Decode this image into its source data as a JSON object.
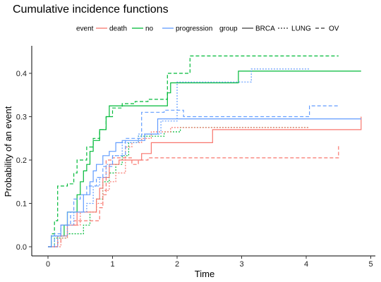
{
  "chart_data": {
    "type": "line",
    "step": true,
    "title": "Cumulative incidence functions",
    "xlabel": "Time",
    "ylabel": "Probability of an event",
    "xlim": [
      0,
      5
    ],
    "ylim": [
      0,
      0.45
    ],
    "xticks": [
      0,
      1,
      2,
      3,
      4,
      5
    ],
    "yticks": [
      "0.0",
      "0.1",
      "0.2",
      "0.3",
      "0.4"
    ],
    "grid": false,
    "legend": {
      "placement": "top",
      "event_title": "event",
      "event_items": [
        {
          "label": "death",
          "color": "#F8766D"
        },
        {
          "label": "no",
          "color": "#00BA38"
        },
        {
          "label": "progression",
          "color": "#619CFF"
        }
      ],
      "group_title": "group",
      "group_items": [
        {
          "label": "BRCA",
          "dash": "solid"
        },
        {
          "label": "LUNG",
          "dash": "dotted"
        },
        {
          "label": "OV",
          "dash": "dashed"
        }
      ]
    },
    "series": [
      {
        "event": "no",
        "group": "BRCA",
        "color": "#00BA38",
        "dash": "solid",
        "points": [
          [
            0,
            0
          ],
          [
            0.05,
            0.025
          ],
          [
            0.25,
            0.05
          ],
          [
            0.3,
            0.08
          ],
          [
            0.45,
            0.12
          ],
          [
            0.5,
            0.15
          ],
          [
            0.55,
            0.175
          ],
          [
            0.6,
            0.19
          ],
          [
            0.65,
            0.22
          ],
          [
            0.7,
            0.245
          ],
          [
            0.8,
            0.27
          ],
          [
            0.9,
            0.3
          ],
          [
            0.95,
            0.325
          ],
          [
            1.85,
            0.355
          ],
          [
            1.9,
            0.378
          ],
          [
            2.95,
            0.405
          ],
          [
            4.85,
            0.405
          ]
        ]
      },
      {
        "event": "no",
        "group": "LUNG",
        "color": "#00BA38",
        "dash": "dotted",
        "points": [
          [
            0,
            0
          ],
          [
            0.1,
            0.02
          ],
          [
            0.3,
            0.03
          ],
          [
            0.55,
            0.05
          ],
          [
            0.65,
            0.08
          ],
          [
            0.75,
            0.11
          ],
          [
            0.85,
            0.15
          ],
          [
            0.95,
            0.17
          ],
          [
            1.05,
            0.19
          ],
          [
            1.15,
            0.21
          ],
          [
            1.25,
            0.24
          ],
          [
            1.4,
            0.255
          ],
          [
            1.8,
            0.265
          ],
          [
            2.05,
            0.275
          ],
          [
            4.05,
            0.275
          ]
        ]
      },
      {
        "event": "no",
        "group": "OV",
        "color": "#00BA38",
        "dash": "dashed",
        "points": [
          [
            0,
            0
          ],
          [
            0.05,
            0.03
          ],
          [
            0.1,
            0.06
          ],
          [
            0.15,
            0.14
          ],
          [
            0.3,
            0.145
          ],
          [
            0.4,
            0.17
          ],
          [
            0.45,
            0.2
          ],
          [
            0.6,
            0.23
          ],
          [
            0.7,
            0.25
          ],
          [
            0.8,
            0.27
          ],
          [
            0.9,
            0.3
          ],
          [
            1.0,
            0.32
          ],
          [
            1.15,
            0.33
          ],
          [
            1.35,
            0.335
          ],
          [
            1.55,
            0.34
          ],
          [
            1.85,
            0.4
          ],
          [
            2.2,
            0.44
          ],
          [
            4.5,
            0.44
          ]
        ]
      },
      {
        "event": "death",
        "group": "BRCA",
        "color": "#F8766D",
        "dash": "solid",
        "points": [
          [
            0,
            0
          ],
          [
            0.15,
            0.025
          ],
          [
            0.3,
            0.05
          ],
          [
            0.45,
            0.08
          ],
          [
            0.75,
            0.11
          ],
          [
            0.8,
            0.135
          ],
          [
            0.85,
            0.16
          ],
          [
            0.95,
            0.19
          ],
          [
            1.1,
            0.2
          ],
          [
            1.45,
            0.215
          ],
          [
            1.6,
            0.24
          ],
          [
            2.55,
            0.27
          ],
          [
            4.85,
            0.27
          ],
          [
            4.85,
            0.3
          ]
        ]
      },
      {
        "event": "death",
        "group": "LUNG",
        "color": "#F8766D",
        "dash": "dotted",
        "points": [
          [
            0,
            0
          ],
          [
            0.2,
            0.02
          ],
          [
            0.3,
            0.05
          ],
          [
            0.5,
            0.08
          ],
          [
            0.75,
            0.1
          ],
          [
            0.85,
            0.13
          ],
          [
            0.95,
            0.15
          ],
          [
            1.05,
            0.17
          ],
          [
            1.2,
            0.23
          ],
          [
            1.3,
            0.24
          ],
          [
            1.45,
            0.25
          ],
          [
            1.6,
            0.265
          ],
          [
            1.9,
            0.275
          ],
          [
            4.05,
            0.275
          ]
        ]
      },
      {
        "event": "death",
        "group": "OV",
        "color": "#F8766D",
        "dash": "dashed",
        "points": [
          [
            0,
            0
          ],
          [
            0.15,
            0.01
          ],
          [
            0.2,
            0.05
          ],
          [
            0.4,
            0.06
          ],
          [
            0.55,
            0.06
          ],
          [
            0.75,
            0.06
          ],
          [
            0.8,
            0.09
          ],
          [
            0.85,
            0.12
          ],
          [
            0.9,
            0.2
          ],
          [
            1.0,
            0.205
          ],
          [
            1.3,
            0.19
          ],
          [
            1.4,
            0.2
          ],
          [
            1.55,
            0.205
          ],
          [
            4.5,
            0.205
          ],
          [
            4.5,
            0.235
          ]
        ]
      },
      {
        "event": "progression",
        "group": "BRCA",
        "color": "#619CFF",
        "dash": "solid",
        "points": [
          [
            0,
            0
          ],
          [
            0.05,
            0.025
          ],
          [
            0.2,
            0.05
          ],
          [
            0.3,
            0.08
          ],
          [
            0.55,
            0.12
          ],
          [
            0.65,
            0.15
          ],
          [
            0.7,
            0.175
          ],
          [
            0.75,
            0.19
          ],
          [
            0.85,
            0.21
          ],
          [
            0.95,
            0.22
          ],
          [
            1.05,
            0.24
          ],
          [
            1.15,
            0.245
          ],
          [
            1.5,
            0.26
          ],
          [
            1.7,
            0.295
          ],
          [
            4.85,
            0.295
          ]
        ]
      },
      {
        "event": "progression",
        "group": "LUNG",
        "color": "#619CFF",
        "dash": "dotted",
        "points": [
          [
            0,
            0
          ],
          [
            0.15,
            0.025
          ],
          [
            0.3,
            0.05
          ],
          [
            0.4,
            0.08
          ],
          [
            0.6,
            0.1
          ],
          [
            0.7,
            0.14
          ],
          [
            0.8,
            0.16
          ],
          [
            0.9,
            0.19
          ],
          [
            1.0,
            0.21
          ],
          [
            1.15,
            0.24
          ],
          [
            1.4,
            0.26
          ],
          [
            1.75,
            0.29
          ],
          [
            2.0,
            0.38
          ],
          [
            3.15,
            0.41
          ],
          [
            4.05,
            0.41
          ]
        ]
      },
      {
        "event": "progression",
        "group": "OV",
        "color": "#619CFF",
        "dash": "dashed",
        "points": [
          [
            0,
            0
          ],
          [
            0.1,
            0.03
          ],
          [
            0.2,
            0.05
          ],
          [
            0.35,
            0.08
          ],
          [
            0.4,
            0.11
          ],
          [
            0.5,
            0.12
          ],
          [
            0.6,
            0.14
          ],
          [
            0.75,
            0.16
          ],
          [
            0.85,
            0.185
          ],
          [
            1.0,
            0.21
          ],
          [
            1.2,
            0.25
          ],
          [
            1.45,
            0.31
          ],
          [
            1.8,
            0.315
          ],
          [
            2.1,
            0.3
          ],
          [
            4.05,
            0.3
          ],
          [
            4.05,
            0.325
          ],
          [
            4.5,
            0.325
          ]
        ]
      }
    ]
  }
}
